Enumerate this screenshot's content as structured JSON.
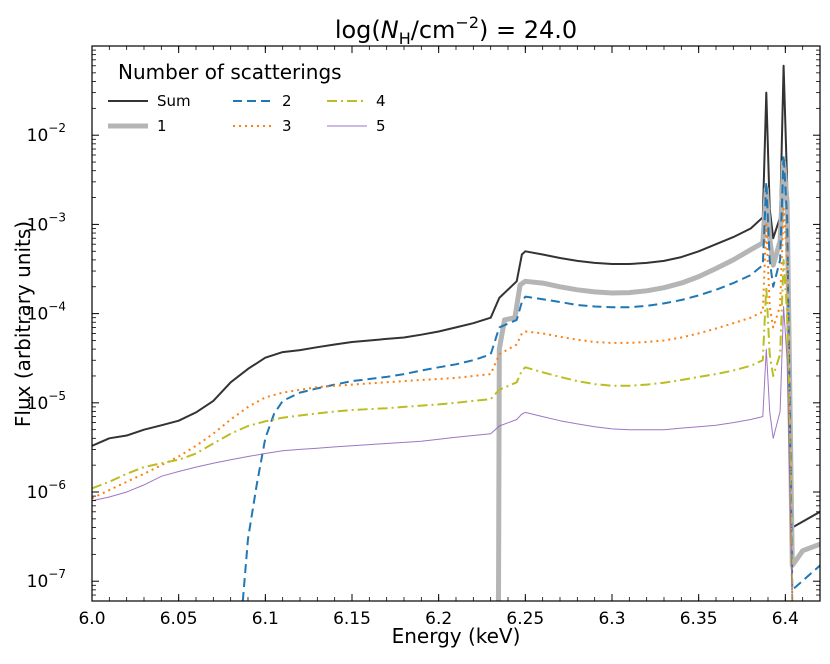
{
  "chart_data": {
    "type": "line",
    "title": "log(N_H/cm^-2) = 24.0",
    "title_parts": {
      "prefix": "log(",
      "n": "N",
      "sub": "H",
      "mid": "/cm",
      "sup": "−2",
      "suffix": ") = 24.0"
    },
    "xlabel": "Energy (keV)",
    "ylabel": "Flux (arbitrary units)",
    "xlim": [
      6.0,
      6.42
    ],
    "ylim": [
      6e-08,
      0.1
    ],
    "yscale": "log",
    "xticks": [
      6.0,
      6.05,
      6.1,
      6.15,
      6.2,
      6.25,
      6.3,
      6.35,
      6.4
    ],
    "xtick_labels": [
      "6.0",
      "6.05",
      "6.1",
      "6.15",
      "6.2",
      "6.25",
      "6.3",
      "6.35",
      "6.4"
    ],
    "yticks": [
      {
        "mant": "10",
        "exp": "−7",
        "value": 1e-07
      },
      {
        "mant": "10",
        "exp": "−6",
        "value": 1e-06
      },
      {
        "mant": "10",
        "exp": "−5",
        "value": 1e-05
      },
      {
        "mant": "10",
        "exp": "−4",
        "value": 0.0001
      },
      {
        "mant": "10",
        "exp": "−3",
        "value": 0.001
      },
      {
        "mant": "10",
        "exp": "−2",
        "value": 0.01
      }
    ],
    "legend": {
      "title": "Number of scatterings",
      "placement": "top-left"
    },
    "series": [
      {
        "name": "Sum",
        "color": "#333333",
        "dash": "none",
        "width": 2,
        "opacity": 1,
        "points": [
          [
            6.0,
            3.3e-06
          ],
          [
            6.01,
            4e-06
          ],
          [
            6.02,
            4.3e-06
          ],
          [
            6.03,
            5e-06
          ],
          [
            6.04,
            5.6e-06
          ],
          [
            6.05,
            6.3e-06
          ],
          [
            6.06,
            7.8e-06
          ],
          [
            6.07,
            1.05e-05
          ],
          [
            6.08,
            1.7e-05
          ],
          [
            6.09,
            2.4e-05
          ],
          [
            6.1,
            3.2e-05
          ],
          [
            6.11,
            3.7e-05
          ],
          [
            6.12,
            3.9e-05
          ],
          [
            6.13,
            4.2e-05
          ],
          [
            6.14,
            4.5e-05
          ],
          [
            6.15,
            4.8e-05
          ],
          [
            6.16,
            5e-05
          ],
          [
            6.17,
            5.2e-05
          ],
          [
            6.18,
            5.4e-05
          ],
          [
            6.19,
            5.8e-05
          ],
          [
            6.2,
            6.3e-05
          ],
          [
            6.21,
            7e-05
          ],
          [
            6.22,
            7.8e-05
          ],
          [
            6.23,
            9e-05
          ],
          [
            6.235,
            0.00015
          ],
          [
            6.245,
            0.00023
          ],
          [
            6.248,
            0.00046
          ],
          [
            6.25,
            0.0005
          ],
          [
            6.26,
            0.00046
          ],
          [
            6.27,
            0.00042
          ],
          [
            6.28,
            0.00039
          ],
          [
            6.29,
            0.00037
          ],
          [
            6.3,
            0.00036
          ],
          [
            6.31,
            0.00036
          ],
          [
            6.32,
            0.00037
          ],
          [
            6.33,
            0.00039
          ],
          [
            6.34,
            0.00043
          ],
          [
            6.35,
            0.0005
          ],
          [
            6.36,
            0.0006
          ],
          [
            6.37,
            0.00072
          ],
          [
            6.38,
            0.0009
          ],
          [
            6.387,
            0.0012
          ],
          [
            6.389,
            0.03
          ],
          [
            6.391,
            0.0015
          ],
          [
            6.393,
            0.0007
          ],
          [
            6.397,
            0.0012
          ],
          [
            6.399,
            0.06
          ],
          [
            6.401,
            0.003
          ],
          [
            6.404,
            4e-07
          ],
          [
            6.42,
            6e-07
          ]
        ]
      },
      {
        "name": "1",
        "color": "#b5b5b5",
        "dash": "none",
        "width": 5,
        "opacity": 1,
        "points": [
          [
            6.2345,
            6e-08
          ],
          [
            6.235,
            4e-05
          ],
          [
            6.238,
            8.5e-05
          ],
          [
            6.244,
            9e-05
          ],
          [
            6.247,
            0.00021
          ],
          [
            6.25,
            0.00023
          ],
          [
            6.26,
            0.00022
          ],
          [
            6.27,
            0.0002
          ],
          [
            6.28,
            0.000185
          ],
          [
            6.29,
            0.000175
          ],
          [
            6.3,
            0.00017
          ],
          [
            6.31,
            0.000172
          ],
          [
            6.32,
            0.00018
          ],
          [
            6.33,
            0.000195
          ],
          [
            6.34,
            0.00022
          ],
          [
            6.35,
            0.00026
          ],
          [
            6.36,
            0.00032
          ],
          [
            6.37,
            0.0004
          ],
          [
            6.38,
            0.00052
          ],
          [
            6.387,
            0.00062
          ],
          [
            6.389,
            0.0025
          ],
          [
            6.391,
            0.0007
          ],
          [
            6.393,
            0.00035
          ],
          [
            6.397,
            0.00065
          ],
          [
            6.399,
            0.005
          ],
          [
            6.401,
            0.0018
          ],
          [
            6.404,
            1.5e-07
          ],
          [
            6.41,
            2.2e-07
          ],
          [
            6.42,
            2.6e-07
          ]
        ]
      },
      {
        "name": "2",
        "color": "#1f77b4",
        "dash": "9 5",
        "width": 2,
        "opacity": 1,
        "points": [
          [
            6.087,
            6e-08
          ],
          [
            6.09,
            3e-07
          ],
          [
            6.095,
            1.2e-06
          ],
          [
            6.1,
            4e-06
          ],
          [
            6.105,
            7.5e-06
          ],
          [
            6.11,
            1.05e-05
          ],
          [
            6.12,
            1.3e-05
          ],
          [
            6.13,
            1.45e-05
          ],
          [
            6.14,
            1.6e-05
          ],
          [
            6.15,
            1.75e-05
          ],
          [
            6.16,
            1.85e-05
          ],
          [
            6.17,
            1.95e-05
          ],
          [
            6.18,
            2.1e-05
          ],
          [
            6.19,
            2.3e-05
          ],
          [
            6.2,
            2.5e-05
          ],
          [
            6.21,
            2.7e-05
          ],
          [
            6.22,
            3e-05
          ],
          [
            6.23,
            3.5e-05
          ],
          [
            6.235,
            7e-05
          ],
          [
            6.245,
            8.5e-05
          ],
          [
            6.248,
            0.000135
          ],
          [
            6.25,
            0.000155
          ],
          [
            6.26,
            0.000145
          ],
          [
            6.27,
            0.000135
          ],
          [
            6.28,
            0.000125
          ],
          [
            6.29,
            0.00012
          ],
          [
            6.3,
            0.000118
          ],
          [
            6.31,
            0.000118
          ],
          [
            6.32,
            0.000122
          ],
          [
            6.33,
            0.00013
          ],
          [
            6.34,
            0.000142
          ],
          [
            6.35,
            0.00016
          ],
          [
            6.36,
            0.000185
          ],
          [
            6.37,
            0.00022
          ],
          [
            6.38,
            0.00027
          ],
          [
            6.387,
            0.00035
          ],
          [
            6.389,
            0.003
          ],
          [
            6.391,
            0.0004
          ],
          [
            6.393,
            0.0002
          ],
          [
            6.397,
            0.0004
          ],
          [
            6.399,
            0.006
          ],
          [
            6.401,
            0.0012
          ],
          [
            6.404,
            8e-08
          ],
          [
            6.42,
            1.5e-07
          ]
        ]
      },
      {
        "name": "3",
        "color": "#ff7f0e",
        "dash": "2 4",
        "width": 2,
        "opacity": 1,
        "points": [
          [
            6.0,
            8.5e-07
          ],
          [
            6.01,
            1.05e-06
          ],
          [
            6.02,
            1.3e-06
          ],
          [
            6.03,
            1.6e-06
          ],
          [
            6.04,
            2e-06
          ],
          [
            6.05,
            2.5e-06
          ],
          [
            6.06,
            3.3e-06
          ],
          [
            6.07,
            4.5e-06
          ],
          [
            6.08,
            6.5e-06
          ],
          [
            6.09,
            9e-06
          ],
          [
            6.1,
            1.15e-05
          ],
          [
            6.11,
            1.3e-05
          ],
          [
            6.12,
            1.4e-05
          ],
          [
            6.13,
            1.5e-05
          ],
          [
            6.14,
            1.55e-05
          ],
          [
            6.15,
            1.6e-05
          ],
          [
            6.16,
            1.65e-05
          ],
          [
            6.17,
            1.7e-05
          ],
          [
            6.18,
            1.75e-05
          ],
          [
            6.19,
            1.8e-05
          ],
          [
            6.2,
            1.85e-05
          ],
          [
            6.21,
            1.9e-05
          ],
          [
            6.22,
            2e-05
          ],
          [
            6.23,
            2.1e-05
          ],
          [
            6.235,
            3.5e-05
          ],
          [
            6.245,
            4.5e-05
          ],
          [
            6.248,
            6e-05
          ],
          [
            6.25,
            6.3e-05
          ],
          [
            6.26,
            6e-05
          ],
          [
            6.27,
            5.5e-05
          ],
          [
            6.28,
            5.1e-05
          ],
          [
            6.29,
            4.8e-05
          ],
          [
            6.3,
            4.7e-05
          ],
          [
            6.31,
            4.7e-05
          ],
          [
            6.32,
            4.8e-05
          ],
          [
            6.33,
            5e-05
          ],
          [
            6.34,
            5.4e-05
          ],
          [
            6.35,
            6e-05
          ],
          [
            6.36,
            6.8e-05
          ],
          [
            6.37,
            7.8e-05
          ],
          [
            6.38,
            9e-05
          ],
          [
            6.387,
            0.000105
          ],
          [
            6.389,
            0.001
          ],
          [
            6.391,
            0.00012
          ],
          [
            6.393,
            7e-05
          ],
          [
            6.397,
            0.00012
          ],
          [
            6.399,
            0.0015
          ],
          [
            6.401,
            0.0004
          ],
          [
            6.404,
            6e-08
          ]
        ]
      },
      {
        "name": "4",
        "color": "#bcbd22",
        "dash": "10 4 2 4",
        "width": 2,
        "opacity": 1,
        "points": [
          [
            6.0,
            1.1e-06
          ],
          [
            6.01,
            1.3e-06
          ],
          [
            6.02,
            1.6e-06
          ],
          [
            6.03,
            1.9e-06
          ],
          [
            6.04,
            2.1e-06
          ],
          [
            6.05,
            2.3e-06
          ],
          [
            6.06,
            2.7e-06
          ],
          [
            6.07,
            3.5e-06
          ],
          [
            6.08,
            4.5e-06
          ],
          [
            6.09,
            5.5e-06
          ],
          [
            6.1,
            6.2e-06
          ],
          [
            6.11,
            6.8e-06
          ],
          [
            6.12,
            7.2e-06
          ],
          [
            6.13,
            7.6e-06
          ],
          [
            6.14,
            8e-06
          ],
          [
            6.15,
            8.3e-06
          ],
          [
            6.16,
            8.5e-06
          ],
          [
            6.17,
            8.7e-06
          ],
          [
            6.18,
            9e-06
          ],
          [
            6.19,
            9.3e-06
          ],
          [
            6.2,
            9.6e-06
          ],
          [
            6.21,
            1e-05
          ],
          [
            6.22,
            1.05e-05
          ],
          [
            6.23,
            1.1e-05
          ],
          [
            6.235,
            1.4e-05
          ],
          [
            6.245,
            1.7e-05
          ],
          [
            6.248,
            2.3e-05
          ],
          [
            6.25,
            2.5e-05
          ],
          [
            6.26,
            2.2e-05
          ],
          [
            6.27,
            1.95e-05
          ],
          [
            6.28,
            1.75e-05
          ],
          [
            6.29,
            1.62e-05
          ],
          [
            6.3,
            1.55e-05
          ],
          [
            6.31,
            1.55e-05
          ],
          [
            6.32,
            1.6e-05
          ],
          [
            6.33,
            1.68e-05
          ],
          [
            6.34,
            1.8e-05
          ],
          [
            6.35,
            1.95e-05
          ],
          [
            6.36,
            2.1e-05
          ],
          [
            6.37,
            2.3e-05
          ],
          [
            6.38,
            2.6e-05
          ],
          [
            6.387,
            3e-05
          ],
          [
            6.389,
            0.0002
          ],
          [
            6.391,
            3.5e-05
          ],
          [
            6.393,
            2e-05
          ],
          [
            6.397,
            3.5e-05
          ],
          [
            6.399,
            0.0004
          ],
          [
            6.401,
            0.0001
          ],
          [
            6.404,
            6e-08
          ]
        ]
      },
      {
        "name": "5",
        "color": "#9467bd",
        "dash": "none",
        "width": 1,
        "opacity": 0.9,
        "points": [
          [
            6.0,
            8e-07
          ],
          [
            6.01,
            8.8e-07
          ],
          [
            6.02,
            1e-06
          ],
          [
            6.03,
            1.2e-06
          ],
          [
            6.04,
            1.5e-06
          ],
          [
            6.05,
            1.7e-06
          ],
          [
            6.06,
            1.9e-06
          ],
          [
            6.07,
            2.1e-06
          ],
          [
            6.08,
            2.3e-06
          ],
          [
            6.09,
            2.5e-06
          ],
          [
            6.1,
            2.7e-06
          ],
          [
            6.11,
            2.9e-06
          ],
          [
            6.12,
            3e-06
          ],
          [
            6.13,
            3.1e-06
          ],
          [
            6.14,
            3.2e-06
          ],
          [
            6.15,
            3.3e-06
          ],
          [
            6.16,
            3.4e-06
          ],
          [
            6.17,
            3.5e-06
          ],
          [
            6.18,
            3.6e-06
          ],
          [
            6.19,
            3.7e-06
          ],
          [
            6.2,
            3.9e-06
          ],
          [
            6.21,
            4.1e-06
          ],
          [
            6.22,
            4.3e-06
          ],
          [
            6.23,
            4.5e-06
          ],
          [
            6.235,
            5.5e-06
          ],
          [
            6.245,
            6.5e-06
          ],
          [
            6.248,
            7.5e-06
          ],
          [
            6.25,
            7.8e-06
          ],
          [
            6.26,
            7e-06
          ],
          [
            6.27,
            6.3e-06
          ],
          [
            6.28,
            5.8e-06
          ],
          [
            6.29,
            5.4e-06
          ],
          [
            6.3,
            5.1e-06
          ],
          [
            6.31,
            5e-06
          ],
          [
            6.32,
            5e-06
          ],
          [
            6.33,
            5e-06
          ],
          [
            6.34,
            5.2e-06
          ],
          [
            6.35,
            5.4e-06
          ],
          [
            6.36,
            5.6e-06
          ],
          [
            6.37,
            6e-06
          ],
          [
            6.38,
            6.5e-06
          ],
          [
            6.387,
            7e-06
          ],
          [
            6.389,
            4e-05
          ],
          [
            6.391,
            8e-06
          ],
          [
            6.393,
            4e-06
          ],
          [
            6.397,
            8e-06
          ],
          [
            6.399,
            0.00012
          ],
          [
            6.401,
            3e-05
          ],
          [
            6.404,
            6e-08
          ]
        ]
      }
    ]
  }
}
